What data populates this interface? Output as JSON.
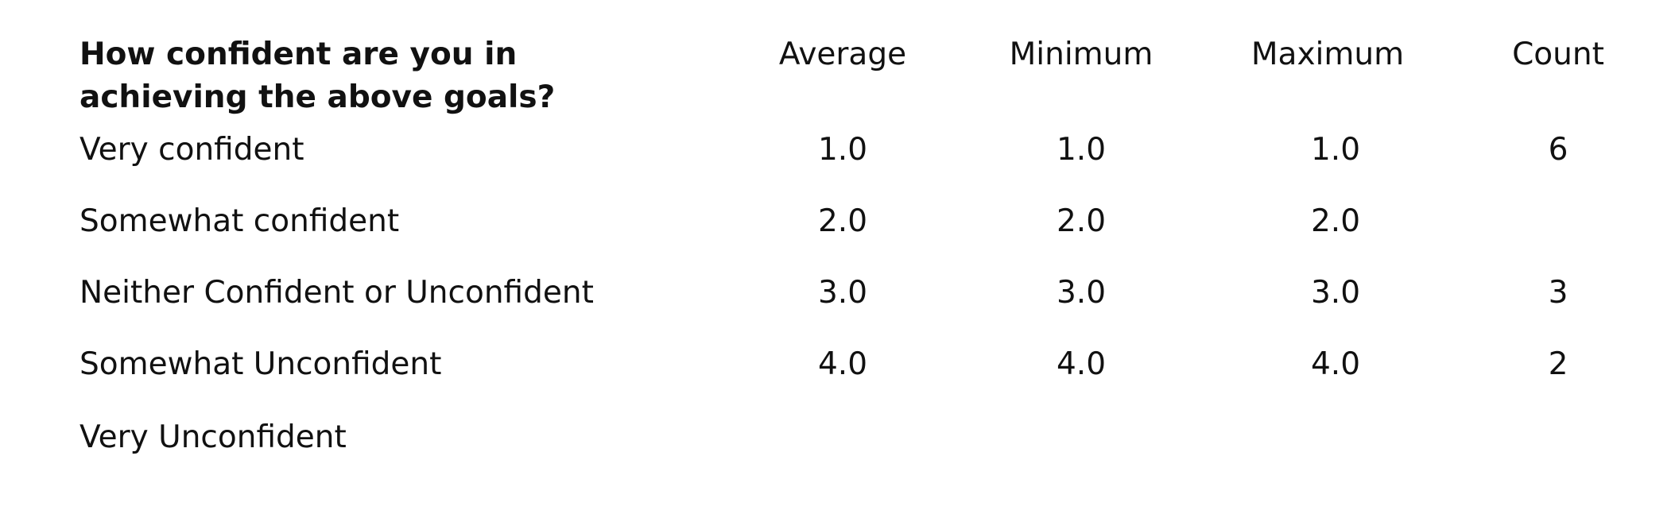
{
  "table": {
    "question": "How confident are you in achieving the above goals?",
    "columns": [
      "Average",
      "Minimum",
      "Maximum",
      "Count"
    ],
    "rows": [
      {
        "label": "Very confident",
        "average": "1.0",
        "minimum": "1.0",
        "maximum": "1.0",
        "count": "6"
      },
      {
        "label": "Somewhat confident",
        "average": "2.0",
        "minimum": "2.0",
        "maximum": "2.0",
        "count": ""
      },
      {
        "label": "Neither Confident or Unconfident",
        "average": "3.0",
        "minimum": "3.0",
        "maximum": "3.0",
        "count": "3"
      },
      {
        "label": "Somewhat Unconfident",
        "average": "4.0",
        "minimum": "4.0",
        "maximum": "4.0",
        "count": "2"
      },
      {
        "label": "Very Unconfident",
        "average": "",
        "minimum": "",
        "maximum": "",
        "count": ""
      }
    ]
  }
}
